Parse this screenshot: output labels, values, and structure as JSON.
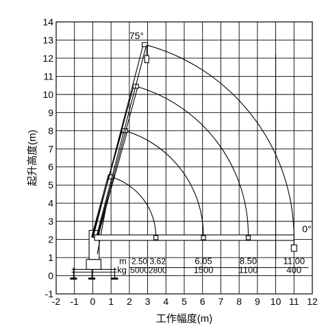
{
  "chart_data": {
    "type": "diagram",
    "xlabel": "工作幅度(m)",
    "ylabel": "起升高度(m)",
    "xlim": [
      -2,
      12
    ],
    "ylim": [
      -1,
      14
    ],
    "xticks": [
      "-2",
      "-1",
      "0",
      "1",
      "2",
      "3",
      "4",
      "5",
      "6",
      "7",
      "8",
      "9",
      "10",
      "11",
      "12"
    ],
    "yticks": [
      "-1",
      "0",
      "1",
      "2",
      "3",
      "4",
      "5",
      "6",
      "7",
      "8",
      "9",
      "10",
      "11",
      "12",
      "13",
      "14"
    ],
    "angle_labels": [
      "75°",
      "0°"
    ],
    "pivot": [
      0.1,
      2.1
    ],
    "boom_tips": [
      [
        1.0,
        5.45
      ],
      [
        1.75,
        8.0
      ],
      [
        2.35,
        10.45
      ],
      [
        2.85,
        12.75
      ]
    ],
    "arcs": [
      {
        "radius": 3.45,
        "end": [
          3.45,
          2.1
        ]
      },
      {
        "radius": 6.05,
        "end": [
          6.05,
          2.1
        ]
      },
      {
        "radius": 8.5,
        "end": [
          8.5,
          2.1
        ]
      },
      {
        "radius": 11.0,
        "end": [
          11.0,
          2.1
        ]
      }
    ],
    "load_table": {
      "radius_unit": "m",
      "weight_unit": "kg",
      "radius": [
        "2.50",
        "3.62",
        "6.05",
        "8.50",
        "11.00"
      ],
      "load": [
        "5000",
        "2800",
        "1500",
        "1100",
        "400"
      ]
    }
  }
}
